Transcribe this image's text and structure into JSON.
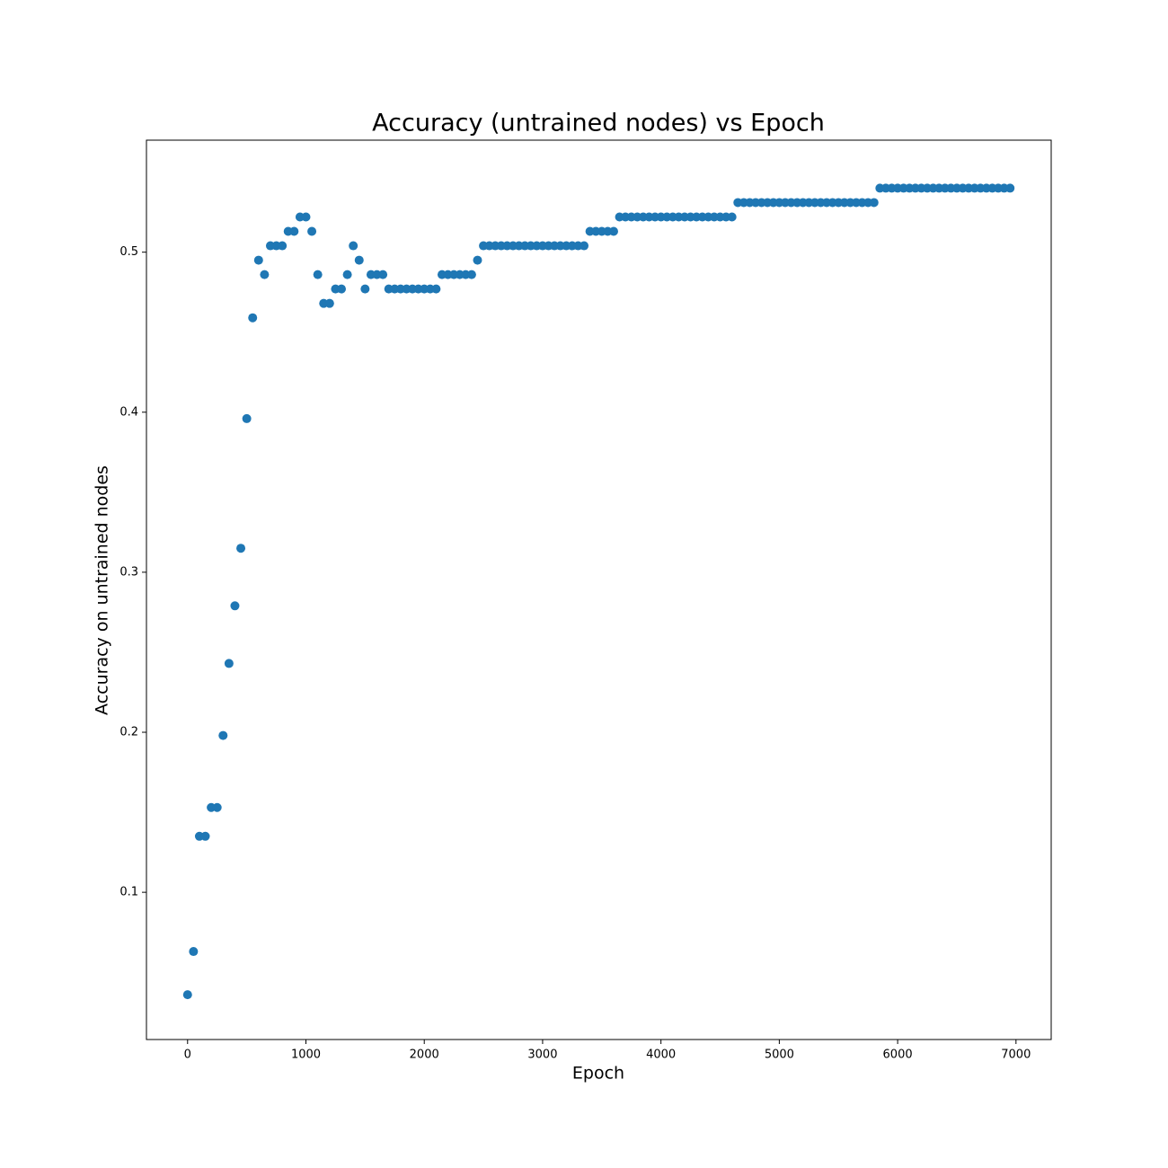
{
  "chart_data": {
    "type": "scatter",
    "title": "Accuracy (untrained nodes) vs Epoch",
    "xlabel": "Epoch",
    "ylabel": "Accuracy on untrained nodes",
    "color": "#1f77b4",
    "x": [
      0,
      50,
      100,
      150,
      200,
      250,
      300,
      350,
      400,
      450,
      500,
      550,
      600,
      650,
      700,
      750,
      800,
      850,
      900,
      950,
      1000,
      1050,
      1100,
      1150,
      1200,
      1250,
      1300,
      1350,
      1400,
      1450,
      1500,
      1550,
      1600,
      1650,
      1700,
      1750,
      1800,
      1850,
      1900,
      1950,
      2000,
      2050,
      2100,
      2150,
      2200,
      2250,
      2300,
      2350,
      2400,
      2450,
      2500,
      2550,
      2600,
      2650,
      2700,
      2750,
      2800,
      2850,
      2900,
      2950,
      3000,
      3050,
      3100,
      3150,
      3200,
      3250,
      3300,
      3350,
      3400,
      3450,
      3500,
      3550,
      3600,
      3650,
      3700,
      3750,
      3800,
      3850,
      3900,
      3950,
      4000,
      4050,
      4100,
      4150,
      4200,
      4250,
      4300,
      4350,
      4400,
      4450,
      4500,
      4550,
      4600,
      4650,
      4700,
      4750,
      4800,
      4850,
      4900,
      4950,
      5000,
      5050,
      5100,
      5150,
      5200,
      5250,
      5300,
      5350,
      5400,
      5450,
      5500,
      5550,
      5600,
      5650,
      5700,
      5750,
      5800,
      5850,
      5900,
      5950,
      6000,
      6050,
      6100,
      6150,
      6200,
      6250,
      6300,
      6350,
      6400,
      6450,
      6500,
      6550,
      6600,
      6650,
      6700,
      6750,
      6800,
      6850,
      6900,
      6950
    ],
    "values": [
      0.036,
      0.063,
      0.135,
      0.135,
      0.153,
      0.153,
      0.198,
      0.243,
      0.279,
      0.315,
      0.396,
      0.459,
      0.495,
      0.486,
      0.504,
      0.504,
      0.504,
      0.513,
      0.513,
      0.522,
      0.522,
      0.513,
      0.486,
      0.468,
      0.468,
      0.477,
      0.477,
      0.486,
      0.504,
      0.495,
      0.477,
      0.486,
      0.486,
      0.486,
      0.477,
      0.477,
      0.477,
      0.477,
      0.477,
      0.477,
      0.477,
      0.477,
      0.477,
      0.486,
      0.486,
      0.486,
      0.486,
      0.486,
      0.486,
      0.495,
      0.504,
      0.504,
      0.504,
      0.504,
      0.504,
      0.504,
      0.504,
      0.504,
      0.504,
      0.504,
      0.504,
      0.504,
      0.504,
      0.504,
      0.504,
      0.504,
      0.504,
      0.504,
      0.513,
      0.513,
      0.513,
      0.513,
      0.513,
      0.522,
      0.522,
      0.522,
      0.522,
      0.522,
      0.522,
      0.522,
      0.522,
      0.522,
      0.522,
      0.522,
      0.522,
      0.522,
      0.522,
      0.522,
      0.522,
      0.522,
      0.522,
      0.522,
      0.522,
      0.531,
      0.531,
      0.531,
      0.531,
      0.531,
      0.531,
      0.531,
      0.531,
      0.531,
      0.531,
      0.531,
      0.531,
      0.531,
      0.531,
      0.531,
      0.531,
      0.531,
      0.531,
      0.531,
      0.531,
      0.531,
      0.531,
      0.531,
      0.531,
      0.54,
      0.54,
      0.54,
      0.54,
      0.54,
      0.54,
      0.54,
      0.54,
      0.54,
      0.54,
      0.54,
      0.54,
      0.54,
      0.54,
      0.54,
      0.54,
      0.54,
      0.54,
      0.54,
      0.54,
      0.54,
      0.54,
      0.54
    ],
    "xlim": [
      -347.5,
      7297.5
    ],
    "ylim": [
      0.008,
      0.57
    ],
    "xticks": [
      0,
      1000,
      2000,
      3000,
      4000,
      5000,
      6000,
      7000
    ],
    "yticks": [
      0.1,
      0.2,
      0.3,
      0.4,
      0.5
    ],
    "grid": false
  }
}
